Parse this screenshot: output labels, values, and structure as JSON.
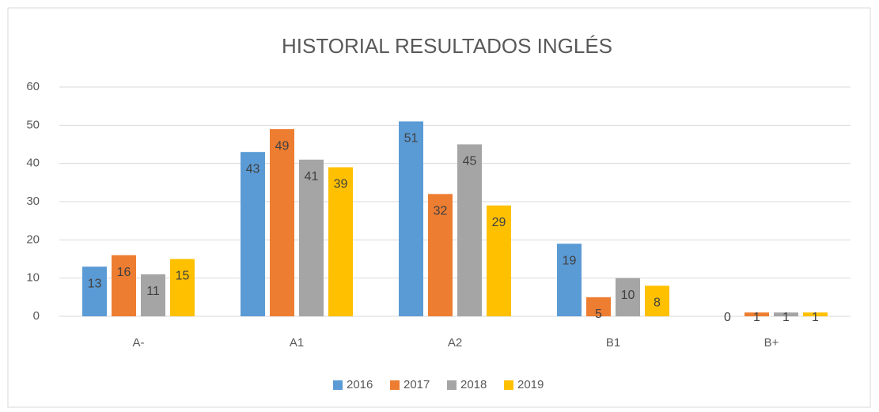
{
  "chart_data": {
    "type": "bar",
    "title": "HISTORIAL RESULTADOS INGLÉS",
    "categories": [
      "A-",
      "A1",
      "A2",
      "B1",
      "B+"
    ],
    "series": [
      {
        "name": "2016",
        "color": "#5b9bd5",
        "values": [
          13,
          43,
          51,
          19,
          0
        ]
      },
      {
        "name": "2017",
        "color": "#ed7d31",
        "values": [
          16,
          49,
          32,
          5,
          1
        ]
      },
      {
        "name": "2018",
        "color": "#a5a5a5",
        "values": [
          11,
          41,
          45,
          10,
          1
        ]
      },
      {
        "name": "2019",
        "color": "#ffc000",
        "values": [
          15,
          39,
          29,
          8,
          1
        ]
      }
    ],
    "ylim": [
      0,
      60
    ],
    "yticks": [
      0,
      10,
      20,
      30,
      40,
      50,
      60
    ],
    "grid": true,
    "legend": "bottom"
  }
}
